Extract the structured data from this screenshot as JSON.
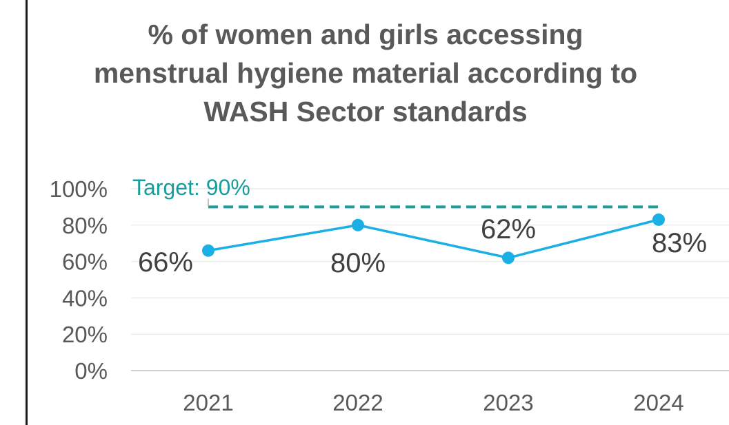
{
  "chart_data": {
    "type": "line",
    "title": "% of women and girls accessing menstrual hygiene material according to WASH Sector standards",
    "categories": [
      "2021",
      "2022",
      "2023",
      "2024"
    ],
    "series": [
      {
        "values": [
          66,
          80,
          62,
          83
        ],
        "labels": [
          "66%",
          "80%",
          "62%",
          "83%"
        ],
        "color": "#1ab0e6"
      }
    ],
    "target": {
      "value": 90,
      "label": "Target: 90%",
      "color": "#1a9c9a"
    },
    "yticks": [
      "0%",
      "20%",
      "40%",
      "60%",
      "80%",
      "100%"
    ],
    "ylim": [
      0,
      100
    ],
    "grid": true,
    "legend": "none"
  }
}
